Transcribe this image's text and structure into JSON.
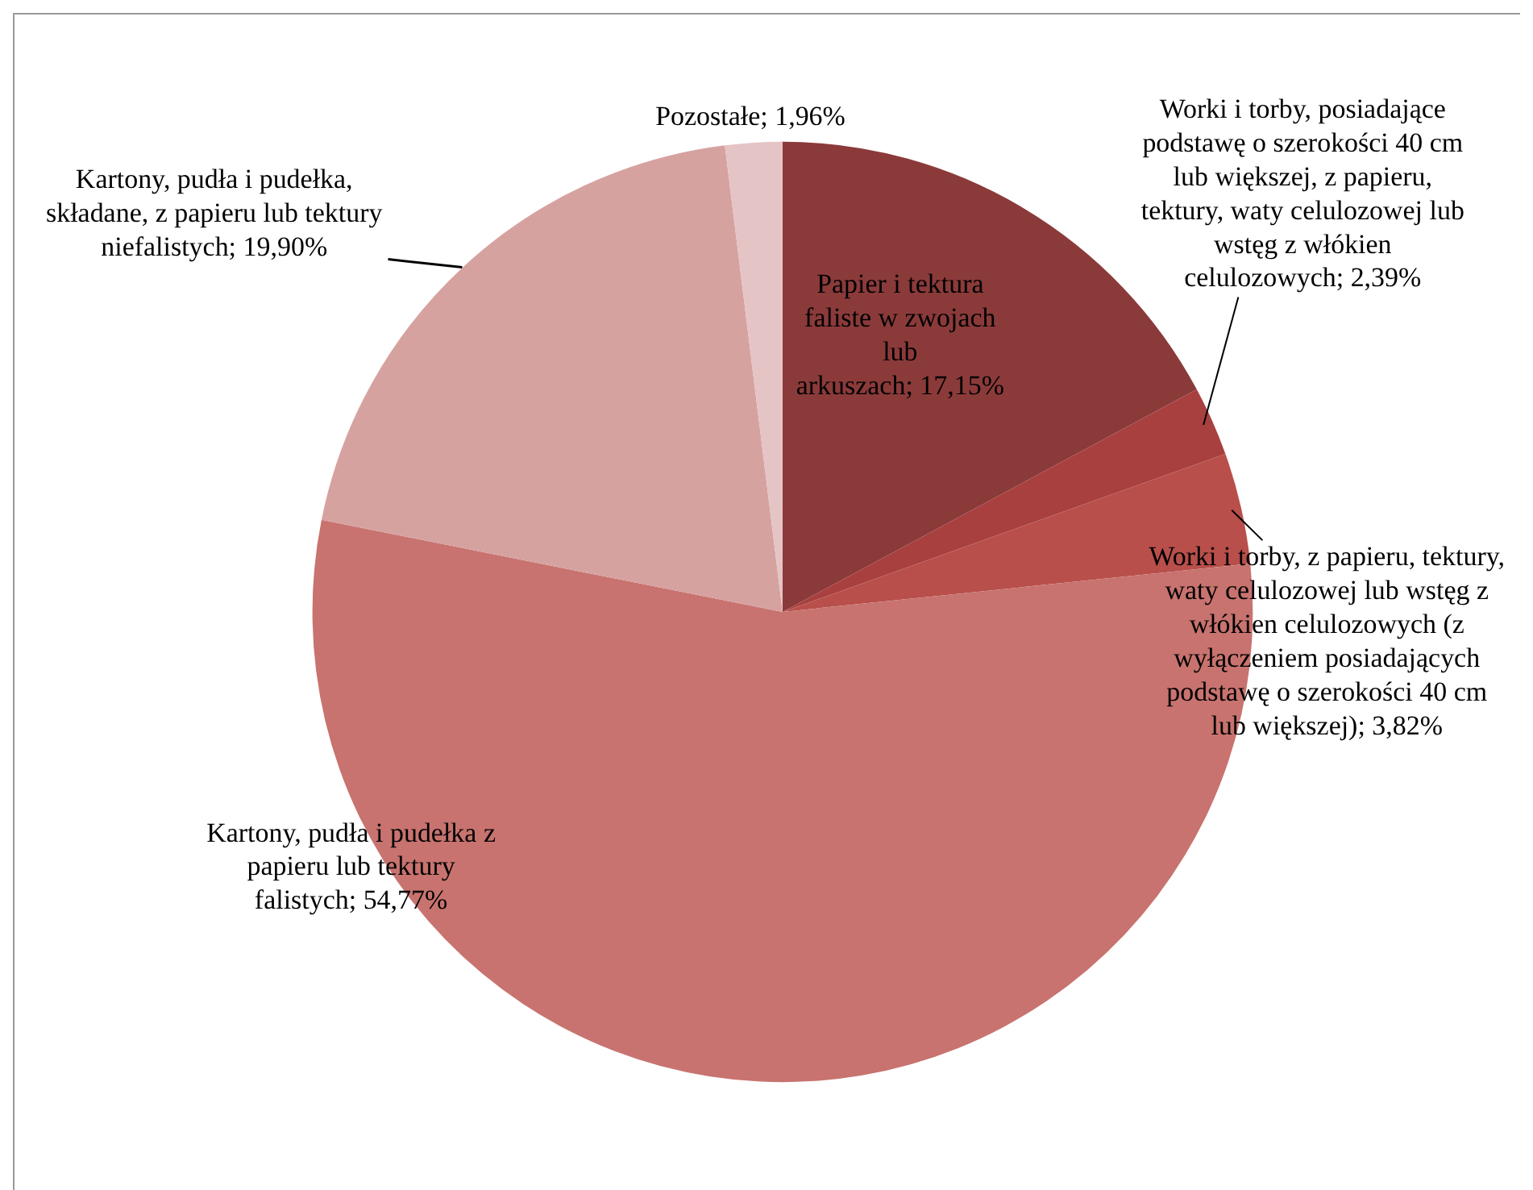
{
  "chart_data": {
    "type": "pie",
    "categories": [
      "Papier i tektura faliste w zwojach lub arkuszach",
      "Worki i torby, posiadające podstawę o szerokości 40 cm lub większej, z papieru, tektury, waty celulozowej lub wstęg z włókien celulozowych",
      "Worki i torby, z papieru, tektury, waty celulozowej lub wstęg z włókien celulozowych (z wyłączeniem posiadających podstawę o szerokości 40 cm lub większej)",
      "Kartony, pudła i pudełka z papieru lub tektury falistych",
      "Kartony, pudła i pudełka, składane, z papieru lub tektury niefalistych",
      "Pozostałe"
    ],
    "values": [
      17.15,
      2.39,
      3.82,
      54.77,
      19.9,
      1.96
    ],
    "value_labels": [
      "17,15%",
      "2,39%",
      "3,82%",
      "54,77%",
      "19,90%",
      "1,96%"
    ],
    "colors": [
      "#8b3a3a",
      "#a8403f",
      "#b84f4b",
      "#c8736f",
      "#d6a2a0",
      "#e5c4c5"
    ],
    "legend": false
  }
}
